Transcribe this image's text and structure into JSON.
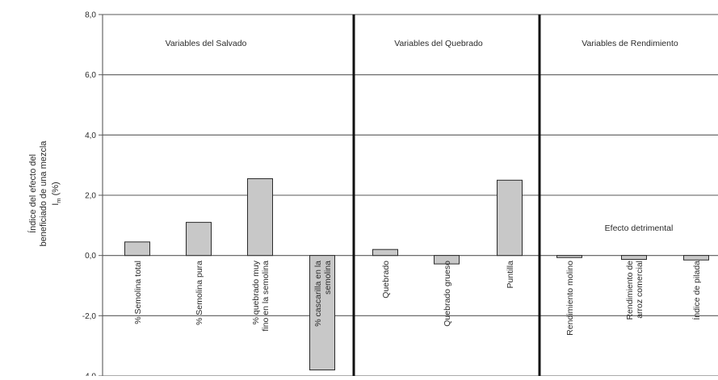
{
  "chart_data": {
    "type": "bar",
    "title": "",
    "ylabel_lines": [
      "Índice del efecto del",
      "beneficiado de una mezcla",
      "I",
      "(%)"
    ],
    "ylabel_subscript": "m",
    "ylim": [
      -4.0,
      8.0
    ],
    "yticks": [
      "8,0",
      "6,0",
      "4,0",
      "2,0",
      "0,0",
      "-2,0",
      "-4,0"
    ],
    "ytick_values": [
      8,
      6,
      4,
      2,
      0,
      -2,
      -4
    ],
    "grid": true,
    "groups": [
      {
        "label": "Variables del Salvado",
        "count": 4
      },
      {
        "label": "Variables del Quebrado",
        "count": 3
      },
      {
        "label": "Variables de Rendimiento",
        "count": 3
      }
    ],
    "categories": [
      [
        "% Semolina total"
      ],
      [
        "% Semolina pura"
      ],
      [
        "% quebrado muy",
        "fino en la semolina"
      ],
      [
        "% cascarilla en la",
        "semolina"
      ],
      [
        "Quebrado"
      ],
      [
        "Quebrado grueso"
      ],
      [
        "Puntilla"
      ],
      [
        "Rendimiento molino"
      ],
      [
        "Rendimiento de",
        "arroz comercial"
      ],
      [
        "Índice de pilada"
      ]
    ],
    "values": [
      0.45,
      1.1,
      2.55,
      -3.8,
      0.2,
      -0.28,
      2.5,
      -0.07,
      -0.13,
      -0.15
    ],
    "annotation": "Efecto detrimental",
    "bar_color": "#c8c8c8"
  }
}
